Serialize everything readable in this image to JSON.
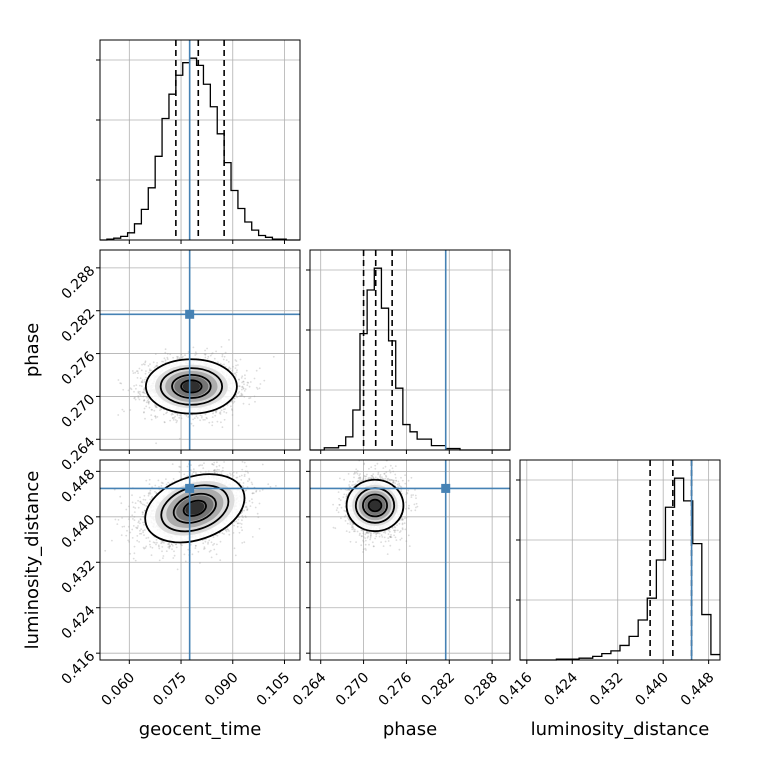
{
  "chart_data": {
    "type": "corner",
    "colors": {
      "truth": "#4682b4",
      "contour": "#000000",
      "grid": "#b0b0b0",
      "samples": "#9a9a9a"
    },
    "parameters": [
      {
        "name": "geocent_time",
        "label": "geocent_time",
        "range": [
          0.0515,
          0.1095
        ],
        "ticks": [
          "0.060",
          "0.075",
          "0.090",
          "0.105"
        ],
        "tick_values": [
          0.06,
          0.075,
          0.09,
          0.105
        ],
        "truth": 0.0775,
        "quantiles": [
          0.0735,
          0.08,
          0.0875
        ]
      },
      {
        "name": "phase",
        "label": "phase",
        "range": [
          0.2625,
          0.2905
        ],
        "ticks": [
          "0.264",
          "0.270",
          "0.276",
          "0.282",
          "0.288"
        ],
        "tick_values": [
          0.264,
          0.27,
          0.276,
          0.282,
          0.288
        ],
        "truth": 0.2815,
        "quantiles": [
          0.27,
          0.2717,
          0.274
        ]
      },
      {
        "name": "luminosity_distance",
        "label": "luminosity_distance",
        "range": [
          0.4148,
          0.45
        ],
        "ticks": [
          "0.416",
          "0.424",
          "0.432",
          "0.440",
          "0.448"
        ],
        "tick_values": [
          0.416,
          0.424,
          0.432,
          0.44,
          0.448
        ],
        "truth": 0.445,
        "quantiles": [
          0.4377,
          0.4417,
          0.445
        ]
      }
    ],
    "histograms": {
      "geocent_time": {
        "bin_edges": [
          0.0515,
          0.0535,
          0.0555,
          0.0575,
          0.0595,
          0.0615,
          0.0635,
          0.0655,
          0.0675,
          0.0695,
          0.0715,
          0.0735,
          0.0755,
          0.0775,
          0.0795,
          0.0815,
          0.0835,
          0.0855,
          0.0875,
          0.0895,
          0.0915,
          0.0935,
          0.0955,
          0.0975,
          0.0995,
          0.1015,
          0.1035,
          0.1055,
          0.1075,
          0.1095
        ],
        "counts": [
          0,
          1,
          2,
          4,
          8,
          18,
          34,
          58,
          93,
          135,
          162,
          183,
          197,
          202,
          194,
          173,
          148,
          118,
          86,
          55,
          35,
          20,
          11,
          5,
          3,
          1,
          1,
          0,
          0
        ]
      },
      "phase": {
        "bin_edges": [
          0.2625,
          0.2645,
          0.2665,
          0.2675,
          0.2685,
          0.2695,
          0.2705,
          0.2715,
          0.2725,
          0.2735,
          0.2745,
          0.2755,
          0.2765,
          0.2775,
          0.2795,
          0.2815,
          0.2835,
          0.2905
        ],
        "counts": [
          0,
          3,
          6,
          18,
          55,
          160,
          220,
          250,
          195,
          150,
          85,
          35,
          25,
          15,
          6,
          2,
          0
        ]
      },
      "luminosity_distance": {
        "bin_edges": [
          0.4148,
          0.4212,
          0.4252,
          0.4276,
          0.4292,
          0.4308,
          0.4324,
          0.434,
          0.4356,
          0.4372,
          0.4388,
          0.4404,
          0.442,
          0.4436,
          0.4452,
          0.4468,
          0.4484,
          0.45
        ],
        "counts": [
          0,
          1,
          2,
          4,
          7,
          10,
          16,
          26,
          44,
          68,
          110,
          168,
          200,
          175,
          128,
          50,
          6
        ]
      }
    },
    "contours": {
      "phase_vs_geocent_time": {
        "center": [
          0.078,
          0.2714
        ],
        "sigma": [
          0.0066,
          0.0019
        ],
        "rho": 0.0
      },
      "luminosity_distance_vs_geocent_time": {
        "center": [
          0.079,
          0.4415
        ],
        "sigma": [
          0.0072,
          0.003
        ],
        "rho": 0.3
      },
      "luminosity_distance_vs_phase": {
        "center": [
          0.2716,
          0.442
        ],
        "sigma": [
          0.0018,
          0.0025
        ],
        "rho": 0.0
      }
    }
  }
}
